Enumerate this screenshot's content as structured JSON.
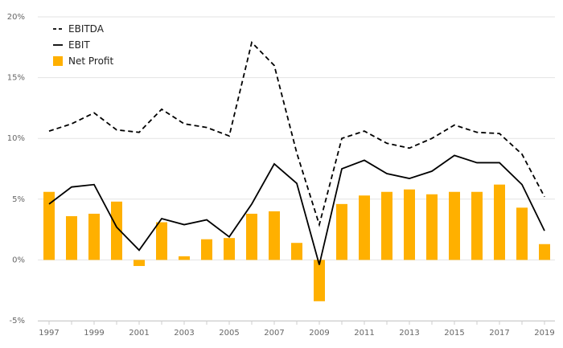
{
  "chart_data": {
    "type": "bar",
    "categories": [
      "1997",
      "1998",
      "1999",
      "2000",
      "2001",
      "2002",
      "2003",
      "2004",
      "2005",
      "2006",
      "2007",
      "2008",
      "2009",
      "2010",
      "2011",
      "2012",
      "2013",
      "2014",
      "2015",
      "2016",
      "2017",
      "2018",
      "2019"
    ],
    "x_tick_labels": [
      "1997",
      "1999",
      "2001",
      "2003",
      "2005",
      "2007",
      "2009",
      "2011",
      "2013",
      "2015",
      "2017",
      "2019"
    ],
    "y_ticks": [
      {
        "value": -5,
        "label": "-5%"
      },
      {
        "value": 0,
        "label": "0%"
      },
      {
        "value": 5,
        "label": "5%"
      },
      {
        "value": 10,
        "label": "10%"
      },
      {
        "value": 15,
        "label": "15%"
      },
      {
        "value": 20,
        "label": "20%"
      }
    ],
    "ylim": [
      -5,
      20
    ],
    "grid": true,
    "legend_position": "top-left",
    "series": [
      {
        "name": "EBITDA",
        "kind": "line",
        "style": "dashed",
        "color": "#000000",
        "values": [
          10.6,
          11.2,
          12.1,
          10.7,
          10.5,
          12.4,
          11.2,
          10.9,
          10.2,
          17.9,
          16.0,
          8.8,
          2.9,
          10.0,
          10.6,
          9.6,
          9.2,
          10.0,
          11.1,
          10.5,
          10.4,
          8.7,
          5.2
        ]
      },
      {
        "name": "EBIT",
        "kind": "line",
        "style": "solid",
        "color": "#000000",
        "values": [
          4.6,
          6.0,
          6.2,
          2.7,
          0.8,
          3.4,
          2.9,
          3.3,
          1.9,
          4.6,
          7.9,
          6.3,
          -0.4,
          7.5,
          8.2,
          7.1,
          6.7,
          7.3,
          8.6,
          8.0,
          8.0,
          6.2,
          2.4
        ]
      },
      {
        "name": "Net Profit",
        "kind": "bar",
        "color": "#FFB000",
        "values": [
          5.6,
          3.6,
          3.8,
          4.8,
          -0.5,
          3.1,
          0.3,
          1.7,
          1.8,
          3.8,
          4.0,
          1.4,
          -3.4,
          4.6,
          5.3,
          5.6,
          5.8,
          5.4,
          5.6,
          5.6,
          6.2,
          4.3,
          1.3
        ]
      }
    ]
  }
}
